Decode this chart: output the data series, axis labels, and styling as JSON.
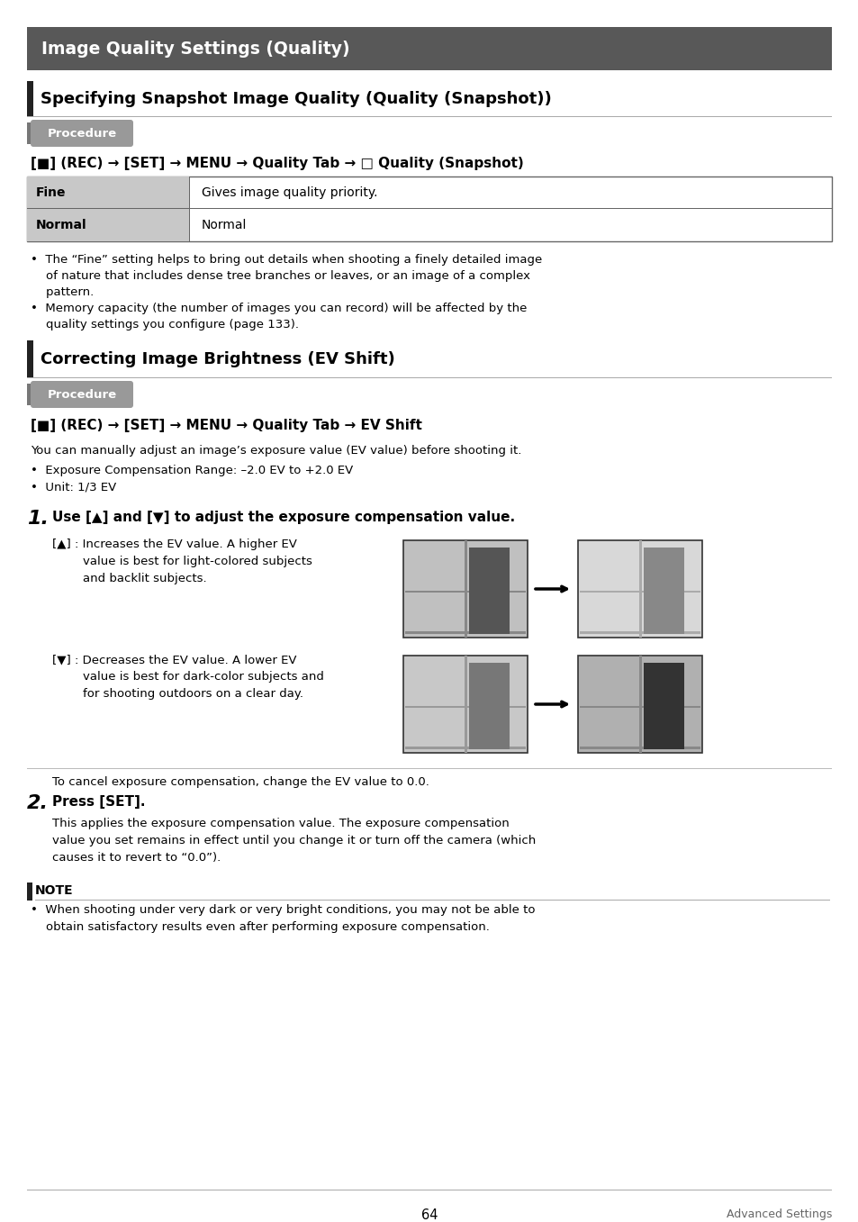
{
  "page_bg": "#ffffff",
  "main_header_bg": "#585858",
  "main_header_text": "Image Quality Settings (Quality)",
  "main_header_color": "#ffffff",
  "section1_title": "Specifying Snapshot Image Quality (Quality (Snapshot))",
  "section1_bar_color": "#222222",
  "procedure_bg": "#999999",
  "procedure_text": "Procedure",
  "proc1_line": "[■] (REC) → [SET] → MENU → Quality Tab → □ Quality (Snapshot)",
  "table_rows": [
    {
      "label": "Fine",
      "desc": "Gives image quality priority."
    },
    {
      "label": "Normal",
      "desc": "Normal"
    }
  ],
  "table_label_bg": "#c8c8c8",
  "bullet1_lines": [
    "•  The “Fine” setting helps to bring out details when shooting a finely detailed image",
    "    of nature that includes dense tree branches or leaves, or an image of a complex",
    "    pattern.",
    "•  Memory capacity (the number of images you can record) will be affected by the",
    "    quality settings you configure (page 133)."
  ],
  "section2_title": "Correcting Image Brightness (EV Shift)",
  "section2_bar_color": "#222222",
  "proc2_line": "[■] (REC) → [SET] → MENU → Quality Tab → EV Shift",
  "ev_intro": "You can manually adjust an image’s exposure value (EV value) before shooting it.",
  "ev_bullets": [
    "•  Exposure Compensation Range: –2.0 EV to +2.0 EV",
    "•  Unit: 1/3 EV"
  ],
  "step1_title": "Use [▲] and [▼] to adjust the exposure compensation value.",
  "step1_up_lines": [
    "[▲] : Increases the EV value. A higher EV",
    "        value is best for light-colored subjects",
    "        and backlit subjects."
  ],
  "step1_down_lines": [
    "[▼] : Decreases the EV value. A lower EV",
    "        value is best for dark-color subjects and",
    "        for shooting outdoors on a clear day."
  ],
  "cancel_text": "To cancel exposure compensation, change the EV value to 0.0.",
  "step2_title": "Press [SET].",
  "step2_body": [
    "This applies the exposure compensation value. The exposure compensation",
    "value you set remains in effect until you change it or turn off the camera (which",
    "causes it to revert to “0.0”)."
  ],
  "note_label": "NOTE",
  "note_bar_color": "#222222",
  "note_bullet_lines": [
    "•  When shooting under very dark or very bright conditions, you may not be able to",
    "    obtain satisfactory results even after performing exposure compensation."
  ],
  "footer_page": "64",
  "footer_right": "Advanced Settings"
}
